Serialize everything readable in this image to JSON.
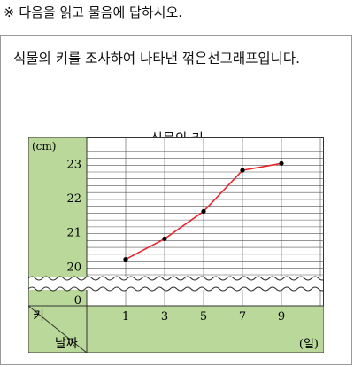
{
  "instruction": "※ 다음을 읽고 물음에 답하시오.",
  "question": "식물의 키를 조사하여 나타낸 꺾은선그래프입니다.",
  "colors": {
    "panel": "#b9d89a",
    "line": "#e8262b",
    "point": "#000000",
    "grid": "#555555"
  },
  "chart_data": {
    "type": "line",
    "title": "식물의 키",
    "ylabel": "키",
    "yunit": "(cm)",
    "xlabel": "날짜",
    "xunit": "(일)",
    "broken_axis_zero": "0",
    "ylim": [
      19.75,
      23.5
    ],
    "ytick_labels": [
      "20",
      "21",
      "22",
      "23"
    ],
    "yticks": [
      20,
      21,
      22,
      23
    ],
    "x_tick_labels": [
      "1",
      "3",
      "5",
      "7",
      "9"
    ],
    "x": [
      1,
      3,
      5,
      7,
      9
    ],
    "y": [
      20.2,
      20.8,
      21.6,
      22.8,
      23.0
    ],
    "grid": true,
    "minor_grid_step": 0.2
  }
}
